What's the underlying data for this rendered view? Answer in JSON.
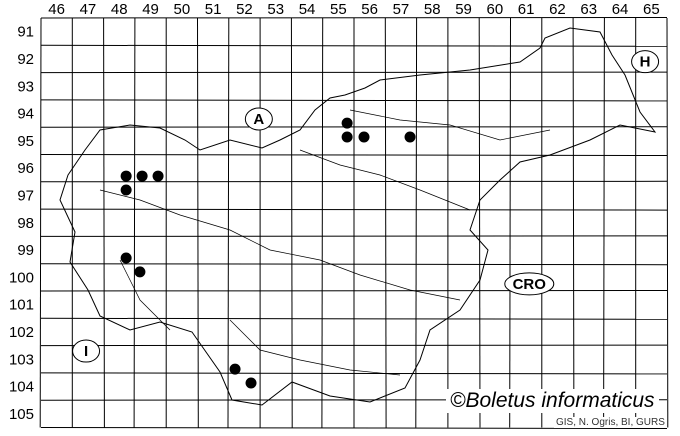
{
  "map": {
    "columns": [
      "46",
      "47",
      "48",
      "49",
      "50",
      "51",
      "52",
      "53",
      "54",
      "55",
      "56",
      "57",
      "58",
      "59",
      "60",
      "61",
      "62",
      "63",
      "64",
      "65"
    ],
    "rows": [
      "91",
      "92",
      "93",
      "94",
      "95",
      "96",
      "97",
      "98",
      "99",
      "100",
      "101",
      "102",
      "103",
      "104",
      "105"
    ],
    "country_labels": [
      {
        "text": "A",
        "col": 52.96,
        "row": 94.7
      },
      {
        "text": "H",
        "col": 65.3,
        "row": 92.6
      },
      {
        "text": "CRO",
        "col": 61.6,
        "row": 100.74
      },
      {
        "text": "I",
        "col": 47.44,
        "row": 103.2
      }
    ],
    "records": [
      {
        "col": 48.72,
        "row": 96.79
      },
      {
        "col": 49.23,
        "row": 96.79
      },
      {
        "col": 49.74,
        "row": 96.79
      },
      {
        "col": 48.72,
        "row": 97.3
      },
      {
        "col": 48.72,
        "row": 99.79
      },
      {
        "col": 49.16,
        "row": 100.3
      },
      {
        "col": 55.78,
        "row": 94.85
      },
      {
        "col": 55.78,
        "row": 95.36
      },
      {
        "col": 56.32,
        "row": 95.36
      },
      {
        "col": 57.79,
        "row": 95.36
      },
      {
        "col": 52.2,
        "row": 103.86
      },
      {
        "col": 52.71,
        "row": 104.37
      }
    ],
    "record_color": "#000000"
  },
  "copyright": "©Boletus informaticus",
  "credit": "GIS, N. Ogris, BI, GURS"
}
